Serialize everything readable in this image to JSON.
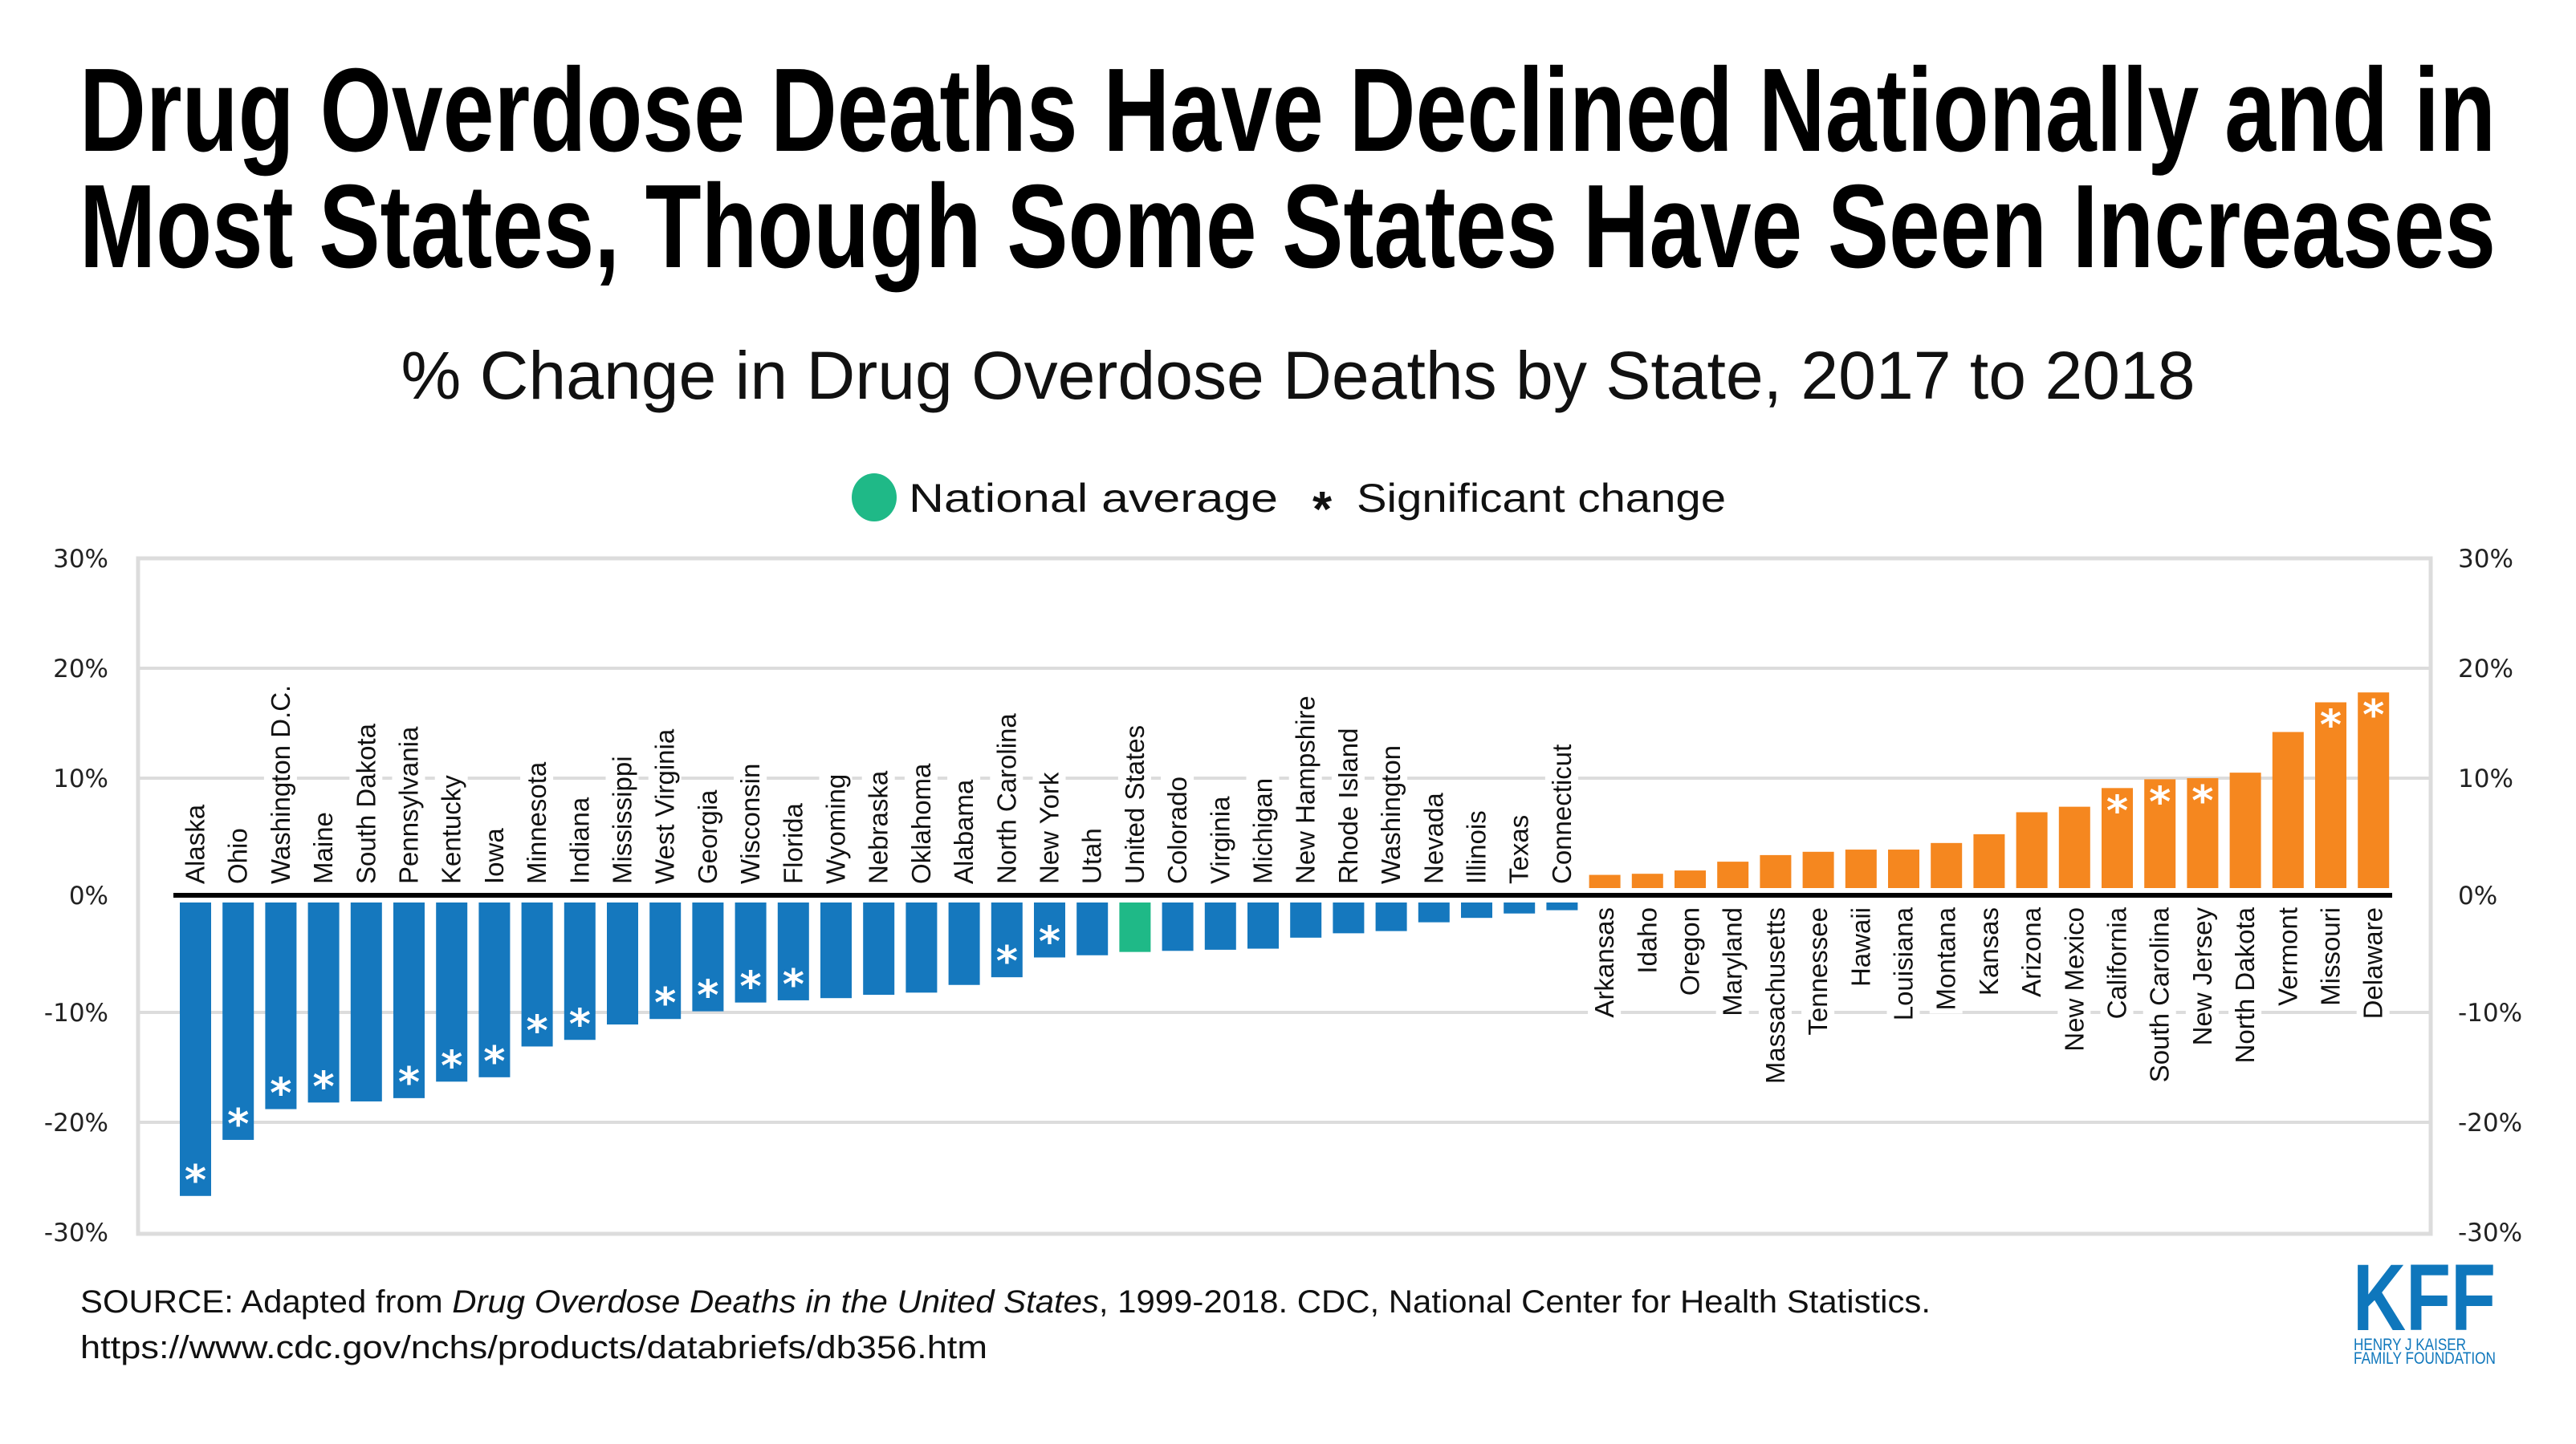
{
  "header": {
    "title_line1": "Drug Overdose Deaths Have Declined Nationally and in",
    "title_line2": "Most States, Though Some States Have Seen Increases",
    "subtitle": "% Change in Drug Overdose Deaths by State, 2017 to 2018"
  },
  "legend": {
    "national_average_label": "National average",
    "significant_symbol": "*",
    "significant_label": "Significant change"
  },
  "colors": {
    "decrease": "#1578BE",
    "increase": "#F5871F",
    "national": "#1FB987"
  },
  "footer": {
    "source_prefix": "SOURCE: Adapted from ",
    "source_italic": "Drug Overdose Deaths in the United States",
    "source_suffix": ", 1999-2018. CDC, National Center for Health Statistics.",
    "source_url": "https://www.cdc.gov/nchs/products/databriefs/db356.htm"
  },
  "logo": {
    "main": "KFF",
    "line1": "HENRY J KAISER",
    "line2": "FAMILY FOUNDATION"
  },
  "chart_data": {
    "type": "bar",
    "title": "% Change in Drug Overdose Deaths by State, 2017 to 2018",
    "xlabel": "",
    "ylabel": "",
    "ylim": [
      -30,
      30
    ],
    "yticks": [
      30,
      20,
      10,
      0,
      -10,
      -20,
      -30
    ],
    "ytick_labels": [
      "30%",
      "20%",
      "10%",
      "0%",
      "-10%",
      "-20%",
      "-30%"
    ],
    "grid": true,
    "legend_position": "top-center",
    "categories": [
      "Alaska",
      "Ohio",
      "Washington D.C.",
      "Maine",
      "South Dakota",
      "Pennsylvania",
      "Kentucky",
      "Iowa",
      "Minnesota",
      "Indiana",
      "Mississippi",
      "West Virginia",
      "Georgia",
      "Wisconsin",
      "Florida",
      "Wyoming",
      "Nebraska",
      "Oklahoma",
      "Alabama",
      "North Carolina",
      "New York",
      "Utah",
      "United States",
      "Colorado",
      "Virginia",
      "Michigan",
      "New Hampshire",
      "Rhode Island",
      "Washington",
      "Nevada",
      "Illinois",
      "Texas",
      "Connecticut",
      "Arkansas",
      "Idaho",
      "Oregon",
      "Maryland",
      "Massachusetts",
      "Tennessee",
      "Hawaii",
      "Louisiana",
      "Montana",
      "Kansas",
      "Arizona",
      "New Mexico",
      "California",
      "South Carolina",
      "New Jersey",
      "North Dakota",
      "Vermont",
      "Missouri",
      "Delaware"
    ],
    "values": [
      -26.7,
      -21.6,
      -18.8,
      -18.2,
      -18.1,
      -17.8,
      -16.3,
      -15.9,
      -13.1,
      -12.5,
      -11.1,
      -10.6,
      -9.9,
      -9.1,
      -8.9,
      -8.7,
      -8.4,
      -8.2,
      -7.5,
      -6.8,
      -5.0,
      -4.8,
      -4.5,
      -4.4,
      -4.3,
      -4.2,
      -3.2,
      -2.8,
      -2.6,
      -1.8,
      -1.4,
      -1.0,
      -0.7,
      1.2,
      1.3,
      1.6,
      2.4,
      3.0,
      3.3,
      3.5,
      3.5,
      4.1,
      4.9,
      6.9,
      7.4,
      9.1,
      9.9,
      10.0,
      10.5,
      14.2,
      16.9,
      17.8
    ],
    "significant": [
      true,
      true,
      true,
      true,
      false,
      true,
      true,
      true,
      true,
      true,
      false,
      true,
      true,
      true,
      true,
      false,
      false,
      false,
      false,
      true,
      true,
      false,
      false,
      false,
      false,
      false,
      false,
      false,
      false,
      false,
      false,
      false,
      false,
      false,
      false,
      false,
      false,
      false,
      false,
      false,
      false,
      false,
      false,
      false,
      false,
      true,
      true,
      true,
      false,
      false,
      true,
      true
    ],
    "national_average_category": "United States"
  }
}
